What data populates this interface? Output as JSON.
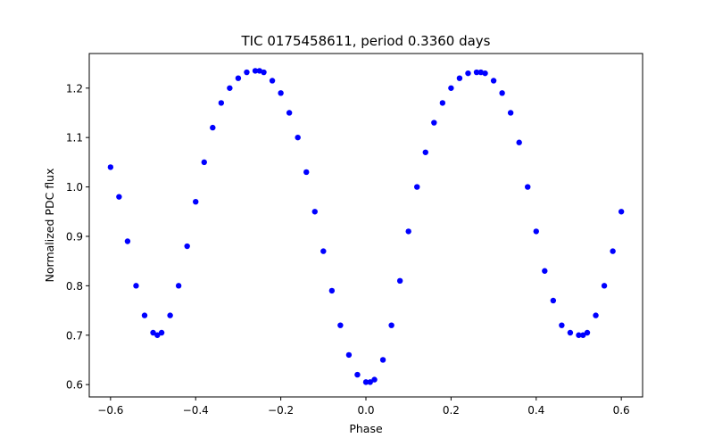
{
  "chart_data": {
    "type": "scatter",
    "title": "TIC 0175458611, period 0.3360 days",
    "xlabel": "Phase",
    "ylabel": "Normalized PDC flux",
    "xlim": [
      -0.65,
      0.65
    ],
    "ylim": [
      0.575,
      1.27
    ],
    "grid": false,
    "marker_color": "#0000ff",
    "x_ticks": [
      -0.6,
      -0.4,
      -0.2,
      0.0,
      0.2,
      0.4,
      0.6
    ],
    "x_tick_labels": [
      "−0.6",
      "−0.4",
      "−0.2",
      "0.0",
      "0.2",
      "0.4",
      "0.6"
    ],
    "y_ticks": [
      0.6,
      0.7,
      0.8,
      0.9,
      1.0,
      1.1,
      1.2
    ],
    "y_tick_labels": [
      "0.6",
      "0.7",
      "0.8",
      "0.9",
      "1.0",
      "1.1",
      "1.2"
    ],
    "series": [
      {
        "name": "TIC 0175458611",
        "x": [
          -0.6,
          -0.58,
          -0.56,
          -0.54,
          -0.52,
          -0.5,
          -0.49,
          -0.48,
          -0.46,
          -0.44,
          -0.42,
          -0.4,
          -0.38,
          -0.36,
          -0.34,
          -0.32,
          -0.3,
          -0.28,
          -0.26,
          -0.25,
          -0.24,
          -0.22,
          -0.2,
          -0.18,
          -0.16,
          -0.14,
          -0.12,
          -0.1,
          -0.08,
          -0.06,
          -0.04,
          -0.02,
          0.0,
          0.01,
          0.02,
          0.04,
          0.06,
          0.08,
          0.1,
          0.12,
          0.14,
          0.16,
          0.18,
          0.2,
          0.22,
          0.24,
          0.26,
          0.27,
          0.28,
          0.3,
          0.32,
          0.34,
          0.36,
          0.38,
          0.4,
          0.42,
          0.44,
          0.46,
          0.48,
          0.5,
          0.51,
          0.52,
          0.54,
          0.56,
          0.58,
          0.6
        ],
        "y": [
          1.04,
          0.98,
          0.89,
          0.8,
          0.74,
          0.705,
          0.7,
          0.705,
          0.74,
          0.8,
          0.88,
          0.97,
          1.05,
          1.12,
          1.17,
          1.2,
          1.22,
          1.232,
          1.235,
          1.235,
          1.232,
          1.215,
          1.19,
          1.15,
          1.1,
          1.03,
          0.95,
          0.87,
          0.79,
          0.72,
          0.66,
          0.62,
          0.605,
          0.605,
          0.61,
          0.65,
          0.72,
          0.81,
          0.91,
          1.0,
          1.07,
          1.13,
          1.17,
          1.2,
          1.22,
          1.23,
          1.232,
          1.232,
          1.23,
          1.215,
          1.19,
          1.15,
          1.09,
          1.0,
          0.91,
          0.83,
          0.77,
          0.72,
          0.705,
          0.7,
          0.7,
          0.705,
          0.74,
          0.8,
          0.87,
          0.95
        ]
      }
    ]
  }
}
